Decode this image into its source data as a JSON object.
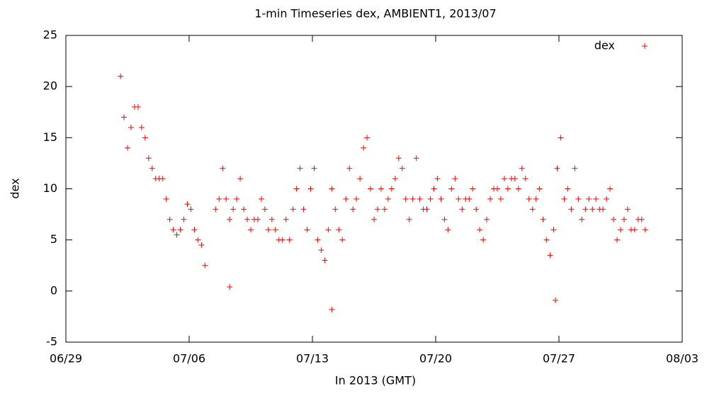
{
  "chart_data": {
    "type": "scatter",
    "title": "1-min Timeseries dex, AMBIENT1, 2013/07",
    "xlabel": "In 2013 (GMT)",
    "ylabel": "dex",
    "xlim": [
      0,
      35
    ],
    "xticks": [
      {
        "value": 0,
        "label": "06/29"
      },
      {
        "value": 7,
        "label": "07/06"
      },
      {
        "value": 14,
        "label": "07/13"
      },
      {
        "value": 21,
        "label": "07/20"
      },
      {
        "value": 28,
        "label": "07/27"
      },
      {
        "value": 35,
        "label": "08/03"
      }
    ],
    "ylim": [
      -5,
      25
    ],
    "yticks": [
      -5,
      0,
      5,
      10,
      15,
      20,
      25
    ],
    "grid": false,
    "legend": "upper right",
    "x": [
      3.1,
      3.3,
      3.5,
      3.7,
      3.9,
      4.1,
      4.3,
      4.5,
      4.7,
      4.9,
      5.1,
      5.3,
      5.5,
      5.7,
      5.9,
      6.1,
      6.3,
      6.5,
      6.7,
      6.9,
      7.1,
      7.3,
      7.5,
      7.7,
      7.9,
      8.5,
      8.7,
      8.9,
      9.1,
      9.3,
      9.5,
      9.7,
      9.9,
      10.1,
      10.3,
      10.5,
      10.7,
      10.9,
      11.1,
      11.3,
      11.5,
      11.7,
      11.9,
      12.1,
      12.3,
      12.5,
      12.7,
      12.9,
      13.1,
      13.3,
      13.5,
      13.7,
      13.9,
      14.1,
      14.3,
      14.5,
      14.7,
      14.9,
      15.1,
      15.3,
      15.5,
      15.7,
      15.9,
      16.1,
      16.3,
      16.5,
      16.7,
      16.9,
      17.1,
      17.3,
      17.5,
      17.7,
      17.9,
      18.1,
      18.3,
      18.5,
      18.7,
      18.9,
      19.1,
      19.3,
      19.5,
      19.7,
      19.9,
      20.1,
      20.3,
      20.5,
      20.7,
      20.9,
      21.1,
      21.3,
      21.5,
      21.7,
      21.9,
      22.1,
      22.3,
      22.5,
      22.7,
      22.9,
      23.1,
      23.3,
      23.5,
      23.7,
      23.9,
      24.1,
      24.3,
      24.5,
      24.7,
      24.9,
      25.1,
      25.3,
      25.5,
      25.7,
      25.9,
      26.1,
      26.3,
      26.5,
      26.7,
      26.9,
      27.1,
      27.3,
      27.5,
      27.7,
      27.9,
      28.1,
      28.3,
      28.5,
      28.7,
      28.9,
      29.1,
      29.3,
      29.5,
      29.7,
      29.9,
      30.1,
      30.3,
      30.5,
      30.7,
      30.9,
      31.1,
      31.3,
      31.5,
      31.7,
      31.9,
      32.1,
      32.3,
      32.5,
      32.7,
      32.9,
      15.1,
      9.3,
      27.8
    ],
    "series": [
      {
        "name": "dex",
        "color": "#ff0000",
        "values": [
          21,
          17,
          14,
          16,
          18,
          18,
          16,
          15,
          13,
          12,
          11,
          11,
          11,
          9,
          7,
          6,
          5.5,
          6,
          7,
          8.5,
          8,
          6,
          5,
          4.5,
          2.5,
          8,
          9,
          12,
          9,
          7,
          8,
          9,
          11,
          8,
          7,
          6,
          7,
          7,
          9,
          8,
          6,
          7,
          6,
          5,
          5,
          7,
          5,
          8,
          10,
          12,
          8,
          6,
          10,
          12,
          5,
          4,
          3,
          6,
          10,
          8,
          6,
          5,
          9,
          12,
          8,
          9,
          11,
          14,
          15,
          10,
          7,
          8,
          10,
          8,
          9,
          10,
          11,
          13,
          12,
          9,
          7,
          9,
          13,
          9,
          8,
          8,
          9,
          10,
          11,
          9,
          7,
          6,
          10,
          11,
          9,
          8,
          9,
          9,
          10,
          8,
          6,
          5,
          7,
          9,
          10,
          10,
          9,
          11,
          10,
          11,
          11,
          10,
          12,
          11,
          9,
          8,
          9,
          10,
          7,
          5,
          3.5,
          6,
          12,
          15,
          9,
          10,
          8,
          12,
          9,
          7,
          8,
          9,
          8,
          9,
          8,
          8,
          9,
          10,
          7,
          5,
          6,
          7,
          8,
          6,
          6,
          7,
          7,
          6,
          -1.8,
          0.4,
          -0.9
        ]
      }
    ]
  }
}
